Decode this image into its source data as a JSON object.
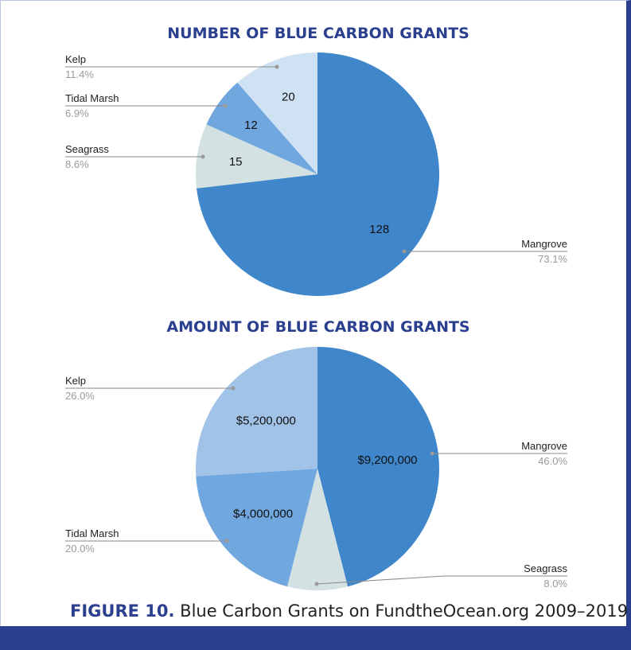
{
  "chart_data": [
    {
      "type": "pie",
      "title": "NUMBER OF BLUE CARBON GRANTS",
      "slices": [
        {
          "label": "Mangrove",
          "value": 128,
          "value_label": "128",
          "percent": "73.1%",
          "color": "#3f86cb"
        },
        {
          "label": "Seagrass",
          "value": 15,
          "value_label": "15",
          "percent": "8.6%",
          "color": "#d3e1e3"
        },
        {
          "label": "Tidal Marsh",
          "value": 12,
          "value_label": "12",
          "percent": "6.9%",
          "color": "#6fa7de"
        },
        {
          "label": "Kelp",
          "value": 20,
          "value_label": "20",
          "percent": "11.4%",
          "color": "#cfe2f3"
        }
      ]
    },
    {
      "type": "pie",
      "title": "AMOUNT OF BLUE CARBON GRANTS",
      "slices": [
        {
          "label": "Mangrove",
          "value": 9200000,
          "value_label": "$9,200,000",
          "percent": "46.0%",
          "color": "#3f86cb"
        },
        {
          "label": "Seagrass",
          "value": 1600000,
          "value_label": "",
          "percent": "8.0%",
          "color": "#d3e1e3"
        },
        {
          "label": "Tidal Marsh",
          "value": 4000000,
          "value_label": "$4,000,000",
          "percent": "20.0%",
          "color": "#6fa7de"
        },
        {
          "label": "Kelp",
          "value": 5200000,
          "value_label": "$5,200,000",
          "percent": "26.0%",
          "color": "#a1c3e8"
        }
      ]
    }
  ],
  "caption": {
    "figure_label": "FIGURE 10.",
    "text": " Blue Carbon Grants on FundtheOcean.org 2009–2019"
  }
}
